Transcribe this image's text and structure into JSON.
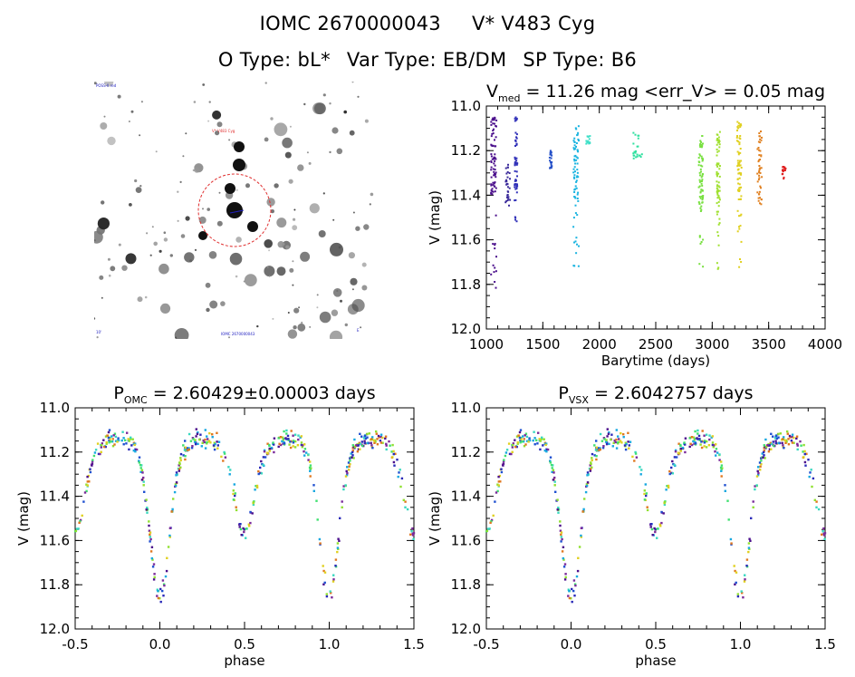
{
  "header": {
    "id": "IOMC 2670000043",
    "name": "V* V483 Cyg",
    "otype": "O Type: bL*",
    "vartype": "Var Type: EB/DM",
    "sptype": "SP Type: B6"
  },
  "finder": {
    "label_top_left": "POSS-II red",
    "label_target": "V* V483 Cyg",
    "label_bottom_left": "10'",
    "label_bottom_center": "IOMC 2670000043",
    "label_bottom_right": "E"
  },
  "chart_data": [
    {
      "type": "scatter",
      "title": "V_med = 11.26 mag <err_V> = 0.05 mag",
      "title_parts": {
        "v": "V",
        "sub": "med",
        "rest": " = 11.26 mag <err_V> = 0.05 mag"
      },
      "xlabel": "Barytime (days)",
      "ylabel": "V (mag)",
      "xlim": [
        1000,
        4000
      ],
      "ylim": [
        12.0,
        11.0
      ],
      "xticks": [
        1000,
        1500,
        2000,
        2500,
        3000,
        3500,
        4000
      ],
      "yticks": [
        11.0,
        11.2,
        11.4,
        11.6,
        11.8,
        12.0
      ],
      "groups": [
        {
          "x": [
            1040,
            1090
          ],
          "ymin": 11.05,
          "ymax": 11.86,
          "color": "#4b0f8c"
        },
        {
          "x": [
            1170,
            1210
          ],
          "ymin": 11.25,
          "ymax": 11.45,
          "color": "#3a2a9a"
        },
        {
          "x": [
            1250,
            1275
          ],
          "ymin": 11.05,
          "ymax": 11.52,
          "color": "#3030b8"
        },
        {
          "x": [
            1560,
            1580
          ],
          "ymin": 11.2,
          "ymax": 11.28,
          "color": "#2550c8"
        },
        {
          "x": [
            1770,
            1820
          ],
          "ymin": 11.09,
          "ymax": 11.73,
          "color": "#1ab4e0"
        },
        {
          "x": [
            1880,
            1920
          ],
          "ymin": 11.13,
          "ymax": 11.17,
          "color": "#40e0c8"
        },
        {
          "x": [
            2300,
            2380
          ],
          "ymin": 11.12,
          "ymax": 11.24,
          "color": "#30e0a0"
        },
        {
          "x": [
            2880,
            2920
          ],
          "ymin": 11.12,
          "ymax": 11.77,
          "color": "#78e040"
        },
        {
          "x": [
            3040,
            3070
          ],
          "ymin": 11.1,
          "ymax": 11.75,
          "color": "#a0e030"
        },
        {
          "x": [
            3220,
            3260
          ],
          "ymin": 11.07,
          "ymax": 11.74,
          "color": "#e0d020"
        },
        {
          "x": [
            3400,
            3440
          ],
          "ymin": 11.1,
          "ymax": 11.48,
          "color": "#e08020"
        },
        {
          "x": [
            3620,
            3650
          ],
          "ymin": 11.27,
          "ymax": 11.33,
          "color": "#e02020"
        }
      ]
    },
    {
      "type": "scatter",
      "title": "P_OMC = 2.60429±0.00003 days",
      "title_parts": {
        "p": "P",
        "sub": "OMC",
        "rest": " = 2.60429±0.00003 days"
      },
      "xlabel": "phase",
      "ylabel": "V (mag)",
      "xlim": [
        -0.5,
        1.5
      ],
      "ylim": [
        12.0,
        11.0
      ],
      "xticks": [
        -0.5,
        0.0,
        0.5,
        1.0,
        1.5
      ],
      "yticks": [
        11.0,
        11.2,
        11.4,
        11.6,
        11.8,
        12.0
      ],
      "light_curve": {
        "max_mag": 11.18,
        "primary_min": 11.82,
        "secondary_min": 11.52
      }
    },
    {
      "type": "scatter",
      "title": "P_VSX = 2.6042757 days",
      "title_parts": {
        "p": "P",
        "sub": "VSX",
        "rest": " = 2.6042757 days"
      },
      "xlabel": "phase",
      "ylabel": "V (mag)",
      "xlim": [
        -0.5,
        1.5
      ],
      "ylim": [
        12.0,
        11.0
      ],
      "xticks": [
        -0.5,
        0.0,
        0.5,
        1.0,
        1.5
      ],
      "yticks": [
        11.0,
        11.2,
        11.4,
        11.6,
        11.8,
        12.0
      ],
      "light_curve": {
        "max_mag": 11.18,
        "primary_min": 11.82,
        "secondary_min": 11.52
      }
    }
  ]
}
